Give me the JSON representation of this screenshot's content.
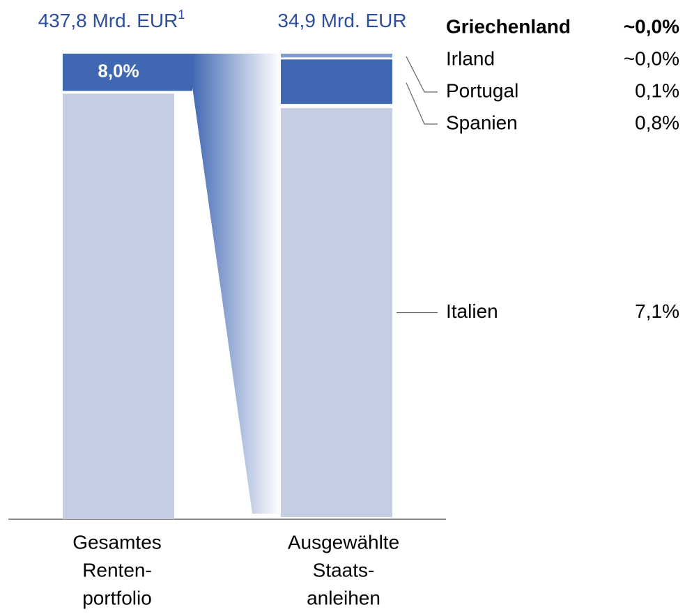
{
  "chart_data": {
    "type": "bar-of-bar",
    "categories": [
      [
        "Gesamtes",
        "Renten-",
        "portfolio"
      ],
      [
        "Ausgewählte",
        "Staats-",
        "anleihen"
      ]
    ],
    "total_labels": [
      {
        "text": "437,8 Mrd. EUR",
        "footnote": "1"
      },
      {
        "text": "34,9 Mrd. EUR"
      }
    ],
    "ylim": [
      0,
      100
    ],
    "highlight": {
      "value": 8.0,
      "label": "8,0%"
    },
    "y2lim": [
      0,
      8.0
    ],
    "segments": [
      {
        "name": "Italien",
        "value": 7.1,
        "label": "7,1%",
        "color": "#c5cde2"
      },
      {
        "name": "Spanien",
        "value": 0.8,
        "label": "0,8%",
        "color": "#4068b2"
      },
      {
        "name": "Portugal",
        "value": 0.1,
        "label": "0,1%",
        "color": "#7f9bd0"
      },
      {
        "name": "Irland",
        "value": 0.0,
        "label": "~0,0%",
        "color": "#4068b2"
      },
      {
        "name": "Griechenland",
        "value": 0.0,
        "label": "~0,0%",
        "color": "#4068b2",
        "bold": true
      }
    ],
    "rest_color": "#c5cde2",
    "highlight_color": "#4068b2",
    "total_color": "#2e4e9e"
  }
}
